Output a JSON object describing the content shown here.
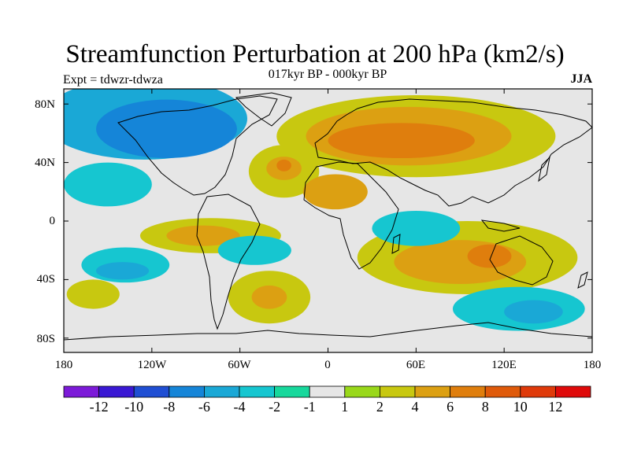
{
  "header": {
    "title": "Streamfunction Perturbation at 200 hPa (km2/s)",
    "subtitle": "017kyr BP - 000kyr BP",
    "left_label": "Expt = tdwzr-tdwza",
    "right_label": "JJA"
  },
  "axes": {
    "lat_ticks": [
      "80N",
      "40N",
      "0",
      "40S",
      "80S"
    ],
    "lon_ticks": [
      "180",
      "120W",
      "60W",
      "0",
      "60E",
      "120E",
      "180"
    ]
  },
  "colorbar": {
    "labels": [
      "-12",
      "-10",
      "-8",
      "-6",
      "-4",
      "-2",
      "-1",
      "1",
      "2",
      "4",
      "6",
      "8",
      "10",
      "12"
    ],
    "colors": [
      "#7c1ad8",
      "#3a18d4",
      "#1f4ed3",
      "#1585d8",
      "#1aa8d6",
      "#16c6d0",
      "#17d89c",
      "#e6e6e6",
      "#99d81a",
      "#c8c810",
      "#dca012",
      "#df7e0d",
      "#df5a0a",
      "#df3a0a",
      "#df0a0a"
    ]
  },
  "map_fields": {
    "background": "#e6e6e6",
    "blobs": [
      {
        "lon": -125,
        "lat": 70,
        "rx": 70,
        "ry": 28,
        "level": "-4"
      },
      {
        "lon": -110,
        "lat": 63,
        "rx": 48,
        "ry": 20,
        "level": "-6"
      },
      {
        "lon": -150,
        "lat": 25,
        "rx": 30,
        "ry": 15,
        "level": "-2"
      },
      {
        "lon": -138,
        "lat": -30,
        "rx": 30,
        "ry": 12,
        "level": "-2"
      },
      {
        "lon": -140,
        "lat": -34,
        "rx": 18,
        "ry": 6,
        "level": "-4"
      },
      {
        "lon": 60,
        "lat": 58,
        "rx": 95,
        "ry": 28,
        "level": "2"
      },
      {
        "lon": 55,
        "lat": 58,
        "rx": 70,
        "ry": 20,
        "level": "4"
      },
      {
        "lon": 50,
        "lat": 55,
        "rx": 50,
        "ry": 12,
        "level": "6"
      },
      {
        "lon": -30,
        "lat": 34,
        "rx": 24,
        "ry": 18,
        "level": "2"
      },
      {
        "lon": -30,
        "lat": 36,
        "rx": 12,
        "ry": 8,
        "level": "4"
      },
      {
        "lon": -30,
        "lat": 38,
        "rx": 5,
        "ry": 4,
        "level": "6"
      },
      {
        "lon": 5,
        "lat": 20,
        "rx": 22,
        "ry": 12,
        "level": "4"
      },
      {
        "lon": -80,
        "lat": -10,
        "rx": 48,
        "ry": 12,
        "level": "2"
      },
      {
        "lon": -85,
        "lat": -10,
        "rx": 25,
        "ry": 7,
        "level": "4"
      },
      {
        "lon": -160,
        "lat": -50,
        "rx": 18,
        "ry": 10,
        "level": "2"
      },
      {
        "lon": -40,
        "lat": -52,
        "rx": 28,
        "ry": 18,
        "level": "2"
      },
      {
        "lon": -40,
        "lat": -52,
        "rx": 12,
        "ry": 8,
        "level": "4"
      },
      {
        "lon": 95,
        "lat": -25,
        "rx": 75,
        "ry": 25,
        "level": "2"
      },
      {
        "lon": 90,
        "lat": -28,
        "rx": 45,
        "ry": 15,
        "level": "4"
      },
      {
        "lon": 110,
        "lat": -24,
        "rx": 15,
        "ry": 8,
        "level": "6"
      },
      {
        "lon": 60,
        "lat": -5,
        "rx": 30,
        "ry": 12,
        "level": "-2"
      },
      {
        "lon": 130,
        "lat": -60,
        "rx": 45,
        "ry": 15,
        "level": "-2"
      },
      {
        "lon": 140,
        "lat": -62,
        "rx": 20,
        "ry": 8,
        "level": "-4"
      },
      {
        "lon": -50,
        "lat": -20,
        "rx": 25,
        "ry": 10,
        "level": "-2"
      }
    ]
  }
}
